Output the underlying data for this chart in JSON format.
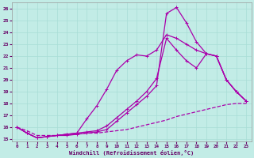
{
  "xlabel": "Windchill (Refroidissement éolien,°C)",
  "background_color": "#c2ece6",
  "grid_color": "#a8ddd6",
  "line_color": "#aa00aa",
  "xlim": [
    -0.5,
    23.5
  ],
  "ylim": [
    14.8,
    26.5
  ],
  "xticks": [
    0,
    1,
    2,
    3,
    4,
    5,
    6,
    7,
    8,
    9,
    10,
    11,
    12,
    13,
    14,
    15,
    16,
    17,
    18,
    19,
    20,
    21,
    22,
    23
  ],
  "yticks": [
    15,
    16,
    17,
    18,
    19,
    20,
    21,
    22,
    23,
    24,
    25,
    26
  ],
  "line_dashed_x": [
    0,
    1,
    2,
    3,
    4,
    5,
    6,
    7,
    8,
    9,
    10,
    11,
    12,
    13,
    14,
    15,
    16,
    17,
    18,
    19,
    20,
    21,
    22,
    23
  ],
  "line_dashed_y": [
    16.0,
    15.7,
    15.3,
    15.3,
    15.3,
    15.4,
    15.4,
    15.5,
    15.5,
    15.6,
    15.7,
    15.8,
    16.0,
    16.2,
    16.4,
    16.6,
    16.9,
    17.1,
    17.3,
    17.5,
    17.7,
    17.9,
    18.0,
    18.0
  ],
  "line_a_x": [
    0,
    1,
    2,
    3,
    4,
    5,
    6,
    7,
    8,
    9,
    10,
    11,
    12,
    13,
    14,
    15,
    16,
    17,
    18,
    19,
    20,
    21,
    22,
    23
  ],
  "line_a_y": [
    16.0,
    15.5,
    15.1,
    15.2,
    15.3,
    15.3,
    15.4,
    15.5,
    15.6,
    15.8,
    16.5,
    17.2,
    17.9,
    18.6,
    19.5,
    25.6,
    26.1,
    24.8,
    23.2,
    22.2,
    22.0,
    20.0,
    19.0,
    18.2
  ],
  "line_b_x": [
    0,
    1,
    2,
    3,
    4,
    5,
    6,
    7,
    8,
    9,
    10,
    11,
    12,
    13,
    14,
    15,
    16,
    17,
    18,
    19,
    20,
    21,
    22,
    23
  ],
  "line_b_y": [
    16.0,
    15.5,
    15.1,
    15.2,
    15.3,
    15.4,
    15.5,
    15.6,
    15.7,
    16.1,
    16.8,
    17.5,
    18.2,
    19.0,
    20.1,
    23.5,
    22.5,
    21.6,
    21.0,
    22.2,
    22.0,
    20.0,
    19.0,
    18.2
  ],
  "line_c_x": [
    0,
    1,
    2,
    3,
    4,
    5,
    6,
    7,
    8,
    9,
    10,
    11,
    12,
    13,
    14,
    15,
    16,
    17,
    18,
    19,
    20,
    21,
    22,
    23
  ],
  "line_c_y": [
    16.0,
    15.5,
    15.1,
    15.2,
    15.3,
    15.4,
    15.5,
    16.7,
    17.8,
    19.2,
    20.8,
    21.6,
    22.1,
    22.0,
    22.5,
    23.8,
    23.5,
    23.0,
    22.5,
    22.2,
    22.0,
    20.0,
    19.0,
    18.2
  ]
}
